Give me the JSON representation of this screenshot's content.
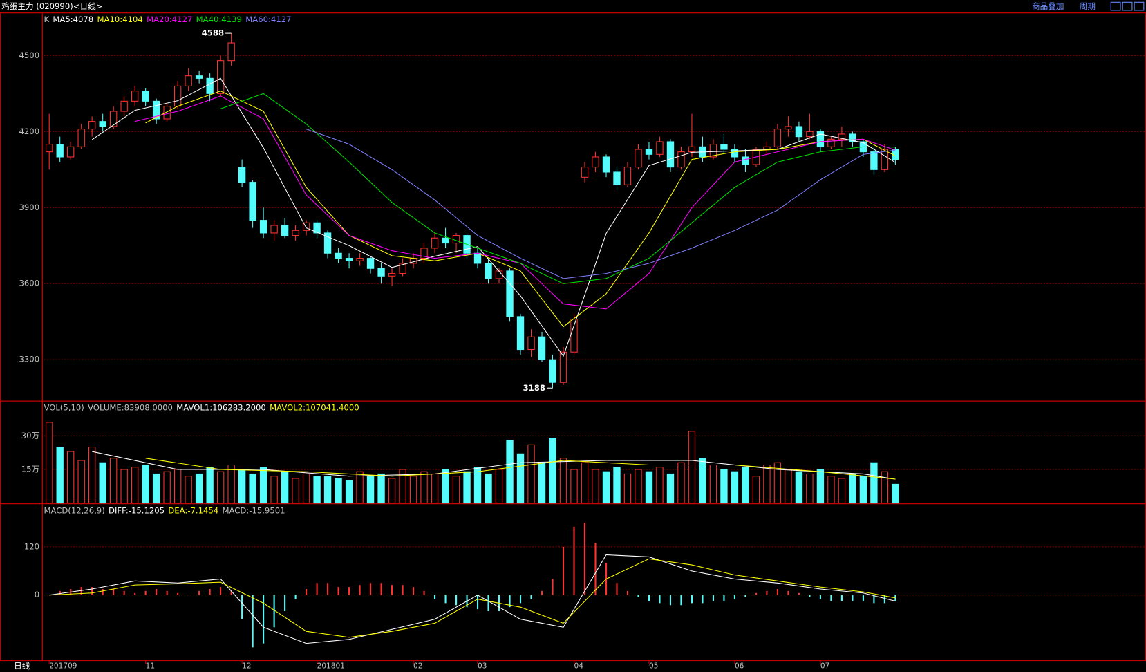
{
  "header": {
    "title": "鸡蛋主力 (020990)<日线>",
    "buttons": [
      "商品叠加",
      "周期"
    ]
  },
  "chart_data": [
    {
      "type": "candlestick",
      "legend_label": "K",
      "up_color": "#ff3232",
      "down_color": "#54fcfc",
      "xlim": [
        -0.5,
        102.4
      ],
      "ylim": [
        3138,
        4667
      ],
      "yticks": [
        3300,
        3600,
        3900,
        4200,
        4500
      ],
      "grid": true,
      "x": [
        0,
        1,
        2,
        3,
        4,
        5,
        6,
        7,
        8,
        9,
        10,
        11,
        12,
        13,
        14,
        15,
        16,
        17,
        18,
        19,
        20,
        21,
        22,
        23,
        24,
        25,
        26,
        27,
        28,
        29,
        30,
        31,
        32,
        33,
        34,
        35,
        36,
        37,
        38,
        39,
        40,
        41,
        42,
        43,
        44,
        45,
        46,
        47,
        48,
        49,
        50,
        51,
        52,
        53,
        54,
        55,
        56,
        57,
        58,
        59,
        60,
        61,
        62,
        63,
        64,
        65,
        66,
        67,
        68,
        69,
        70,
        71,
        72,
        73,
        74,
        75,
        76,
        77,
        78,
        79
      ],
      "ohlc": [
        [
          4120,
          4270,
          4050,
          4150
        ],
        [
          4150,
          4180,
          4080,
          4100
        ],
        [
          4100,
          4160,
          4090,
          4140
        ],
        [
          4140,
          4230,
          4130,
          4210
        ],
        [
          4210,
          4260,
          4180,
          4240
        ],
        [
          4240,
          4270,
          4200,
          4220
        ],
        [
          4220,
          4300,
          4210,
          4280
        ],
        [
          4280,
          4340,
          4260,
          4320
        ],
        [
          4320,
          4380,
          4300,
          4360
        ],
        [
          4360,
          4370,
          4300,
          4320
        ],
        [
          4320,
          4330,
          4230,
          4250
        ],
        [
          4250,
          4310,
          4240,
          4300
        ],
        [
          4300,
          4400,
          4290,
          4380
        ],
        [
          4380,
          4450,
          4360,
          4420
        ],
        [
          4420,
          4440,
          4390,
          4410
        ],
        [
          4410,
          4430,
          4320,
          4350
        ],
        [
          4350,
          4500,
          4340,
          4480
        ],
        [
          4480,
          4588,
          4460,
          4550
        ],
        [
          4060,
          4090,
          3980,
          4000
        ],
        [
          4000,
          4010,
          3820,
          3850
        ],
        [
          3850,
          3900,
          3780,
          3800
        ],
        [
          3800,
          3850,
          3770,
          3830
        ],
        [
          3830,
          3860,
          3780,
          3790
        ],
        [
          3790,
          3830,
          3770,
          3810
        ],
        [
          3810,
          3850,
          3790,
          3840
        ],
        [
          3840,
          3850,
          3780,
          3800
        ],
        [
          3800,
          3810,
          3700,
          3720
        ],
        [
          3720,
          3740,
          3680,
          3700
        ],
        [
          3700,
          3720,
          3660,
          3690
        ],
        [
          3690,
          3720,
          3670,
          3700
        ],
        [
          3700,
          3710,
          3640,
          3660
        ],
        [
          3660,
          3680,
          3600,
          3630
        ],
        [
          3630,
          3660,
          3590,
          3640
        ],
        [
          3640,
          3700,
          3630,
          3680
        ],
        [
          3680,
          3720,
          3660,
          3700
        ],
        [
          3700,
          3760,
          3680,
          3740
        ],
        [
          3740,
          3800,
          3720,
          3780
        ],
        [
          3780,
          3820,
          3740,
          3760
        ],
        [
          3760,
          3800,
          3720,
          3790
        ],
        [
          3790,
          3800,
          3700,
          3720
        ],
        [
          3720,
          3740,
          3660,
          3680
        ],
        [
          3680,
          3700,
          3600,
          3620
        ],
        [
          3620,
          3660,
          3600,
          3650
        ],
        [
          3650,
          3660,
          3450,
          3470
        ],
        [
          3470,
          3480,
          3320,
          3340
        ],
        [
          3340,
          3420,
          3310,
          3390
        ],
        [
          3390,
          3410,
          3290,
          3300
        ],
        [
          3300,
          3320,
          3188,
          3210
        ],
        [
          3210,
          3350,
          3200,
          3330
        ],
        [
          3330,
          3480,
          3320,
          3460
        ],
        [
          4020,
          4080,
          4000,
          4060
        ],
        [
          4060,
          4120,
          4040,
          4100
        ],
        [
          4100,
          4110,
          4020,
          4040
        ],
        [
          4040,
          4060,
          3970,
          3990
        ],
        [
          3990,
          4080,
          3980,
          4060
        ],
        [
          4060,
          4150,
          4050,
          4130
        ],
        [
          4130,
          4160,
          4090,
          4110
        ],
        [
          4110,
          4180,
          4100,
          4160
        ],
        [
          4160,
          4170,
          4040,
          4060
        ],
        [
          4060,
          4140,
          4050,
          4120
        ],
        [
          4120,
          4270,
          4100,
          4140
        ],
        [
          4140,
          4180,
          4080,
          4100
        ],
        [
          4100,
          4170,
          4090,
          4150
        ],
        [
          4150,
          4190,
          4110,
          4130
        ],
        [
          4130,
          4150,
          4080,
          4100
        ],
        [
          4100,
          4130,
          4040,
          4070
        ],
        [
          4070,
          4140,
          4060,
          4130
        ],
        [
          4130,
          4160,
          4110,
          4140
        ],
        [
          4140,
          4230,
          4130,
          4210
        ],
        [
          4210,
          4260,
          4180,
          4220
        ],
        [
          4220,
          4240,
          4160,
          4180
        ],
        [
          4180,
          4270,
          4170,
          4200
        ],
        [
          4200,
          4210,
          4120,
          4140
        ],
        [
          4140,
          4180,
          4130,
          4170
        ],
        [
          4170,
          4220,
          4140,
          4190
        ],
        [
          4190,
          4200,
          4140,
          4160
        ],
        [
          4160,
          4170,
          4100,
          4120
        ],
        [
          4120,
          4140,
          4030,
          4050
        ],
        [
          4050,
          4150,
          4040,
          4130
        ],
        [
          4130,
          4140,
          4070,
          4090
        ]
      ],
      "series": [
        {
          "name": "MA5:4078",
          "color": "#ffffff",
          "x": [
            4,
            8,
            12,
            16,
            20,
            24,
            28,
            32,
            36,
            40,
            44,
            48,
            52,
            56,
            60,
            64,
            68,
            72,
            76,
            79
          ],
          "values": [
            4168,
            4284,
            4322,
            4410,
            4136,
            3820,
            3750,
            3664,
            3708,
            3746,
            3552,
            3314,
            3798,
            4066,
            4118,
            4124,
            4130,
            4190,
            4156,
            4078
          ]
        },
        {
          "name": "MA10:4104",
          "color": "#ffff00",
          "x": [
            9,
            12,
            16,
            20,
            24,
            28,
            32,
            36,
            40,
            44,
            48,
            52,
            56,
            60,
            64,
            68,
            72,
            76,
            79
          ],
          "values": [
            4234,
            4300,
            4360,
            4280,
            3980,
            3790,
            3710,
            3690,
            3720,
            3650,
            3430,
            3560,
            3800,
            4090,
            4120,
            4130,
            4160,
            4170,
            4104
          ]
        },
        {
          "name": "MA20:4127",
          "color": "#ff00ff",
          "x": [
            8,
            12,
            16,
            20,
            24,
            28,
            32,
            36,
            40,
            44,
            48,
            52,
            56,
            60,
            64,
            68,
            72,
            76,
            79
          ],
          "values": [
            4240,
            4280,
            4340,
            4250,
            3950,
            3790,
            3730,
            3700,
            3720,
            3680,
            3520,
            3500,
            3640,
            3900,
            4080,
            4120,
            4160,
            4170,
            4127
          ]
        },
        {
          "name": "MA40:4139",
          "color": "#00e000",
          "x": [
            16,
            20,
            24,
            28,
            32,
            36,
            40,
            44,
            48,
            52,
            56,
            60,
            64,
            68,
            72,
            76,
            79
          ],
          "values": [
            4290,
            4350,
            4230,
            4080,
            3920,
            3800,
            3740,
            3680,
            3600,
            3620,
            3700,
            3840,
            3980,
            4080,
            4120,
            4140,
            4139
          ]
        },
        {
          "name": "MA60:4127",
          "color": "#8080ff",
          "x": [
            24,
            28,
            32,
            36,
            40,
            44,
            48,
            52,
            56,
            60,
            64,
            68,
            72,
            76,
            79
          ],
          "values": [
            4210,
            4150,
            4050,
            3930,
            3790,
            3700,
            3620,
            3640,
            3680,
            3740,
            3810,
            3890,
            4010,
            4110,
            4127
          ]
        }
      ],
      "annotations": [
        {
          "label": "4588",
          "x": 17,
          "y": 4588
        },
        {
          "label": "3188",
          "x": 47,
          "y": 3188
        }
      ]
    },
    {
      "type": "bar",
      "legend_label": "VOL(5,10)",
      "name": "VOLUME:83908.0000",
      "ylim": [
        0,
        450000
      ],
      "yticks": [
        {
          "value": 150000,
          "label": "15万"
        },
        {
          "value": 300000,
          "label": "30万"
        }
      ],
      "grid": true,
      "values": [
        360000,
        250000,
        230000,
        190000,
        250000,
        180000,
        200000,
        150000,
        160000,
        170000,
        130000,
        140000,
        150000,
        120000,
        130000,
        160000,
        140000,
        170000,
        150000,
        130000,
        160000,
        120000,
        140000,
        110000,
        130000,
        120000,
        120000,
        110000,
        100000,
        140000,
        120000,
        130000,
        110000,
        150000,
        120000,
        140000,
        130000,
        150000,
        120000,
        140000,
        160000,
        130000,
        150000,
        280000,
        220000,
        260000,
        180000,
        290000,
        200000,
        150000,
        180000,
        150000,
        140000,
        160000,
        130000,
        150000,
        140000,
        160000,
        130000,
        180000,
        320000,
        200000,
        170000,
        150000,
        140000,
        160000,
        120000,
        170000,
        180000,
        150000,
        140000,
        130000,
        150000,
        120000,
        110000,
        130000,
        120000,
        180000,
        140000,
        83908
      ],
      "series": [
        {
          "name": "MAVOL1:106283.2000",
          "color": "#ffffff",
          "x": [
            4,
            12,
            20,
            28,
            36,
            44,
            52,
            60,
            68,
            76,
            79
          ],
          "values": [
            230000,
            150000,
            150000,
            120000,
            130000,
            180000,
            190000,
            190000,
            150000,
            130000,
            106283.2
          ]
        },
        {
          "name": "MAVOL2:107041.4000",
          "color": "#ffff00",
          "x": [
            9,
            16,
            24,
            32,
            40,
            48,
            56,
            64,
            72,
            79
          ],
          "values": [
            200000,
            150000,
            140000,
            120000,
            140000,
            190000,
            170000,
            170000,
            140000,
            107041.4
          ]
        }
      ]
    },
    {
      "type": "macd",
      "legend_label": "MACD(12,26,9)",
      "name": "MACD:-15.9501",
      "xlabel": "日线",
      "ylim": [
        -160,
        225
      ],
      "yticks": [
        0,
        120
      ],
      "grid": true,
      "xticks": [
        {
          "value": 0,
          "label": "201709"
        },
        {
          "value": 9,
          "label": "11"
        },
        {
          "value": 18,
          "label": "12"
        },
        {
          "value": 25,
          "label": "201801"
        },
        {
          "value": 34,
          "label": "02"
        },
        {
          "value": 40,
          "label": "03"
        },
        {
          "value": 49,
          "label": "04"
        },
        {
          "value": 56,
          "label": "05"
        },
        {
          "value": 64,
          "label": "06"
        },
        {
          "value": 72,
          "label": "07"
        }
      ],
      "values": [
        0,
        10,
        15,
        20,
        20,
        15,
        15,
        10,
        5,
        10,
        15,
        10,
        5,
        0,
        10,
        15,
        20,
        10,
        -60,
        -130,
        -120,
        -80,
        -40,
        -10,
        15,
        30,
        30,
        20,
        20,
        25,
        30,
        30,
        25,
        25,
        20,
        10,
        -10,
        -20,
        -25,
        -30,
        -35,
        -40,
        -40,
        -30,
        -20,
        -10,
        10,
        40,
        120,
        170,
        180,
        130,
        80,
        30,
        10,
        -5,
        -15,
        -20,
        -25,
        -25,
        -20,
        -20,
        -15,
        -15,
        -10,
        -5,
        5,
        10,
        15,
        10,
        5,
        -5,
        -10,
        -15,
        -15,
        -15,
        -15,
        -20,
        -20,
        -15.9501
      ],
      "series": [
        {
          "name": "DIFF:-15.1205",
          "color": "#ffffff",
          "x": [
            0,
            4,
            8,
            12,
            16,
            20,
            24,
            28,
            32,
            36,
            40,
            44,
            48,
            52,
            56,
            60,
            64,
            68,
            72,
            76,
            79
          ],
          "values": [
            0,
            15,
            35,
            30,
            40,
            -80,
            -120,
            -110,
            -85,
            -60,
            0,
            -60,
            -80,
            100,
            95,
            60,
            40,
            30,
            15,
            5,
            -15.1205
          ]
        },
        {
          "name": "DEA:-7.1454",
          "color": "#ffff00",
          "x": [
            0,
            4,
            8,
            12,
            16,
            20,
            24,
            28,
            32,
            36,
            40,
            44,
            48,
            52,
            56,
            60,
            64,
            68,
            72,
            76,
            79
          ],
          "values": [
            0,
            5,
            25,
            28,
            32,
            -20,
            -90,
            -105,
            -90,
            -70,
            -10,
            -30,
            -70,
            40,
            90,
            75,
            50,
            35,
            20,
            8,
            -7.1454
          ]
        }
      ]
    }
  ]
}
